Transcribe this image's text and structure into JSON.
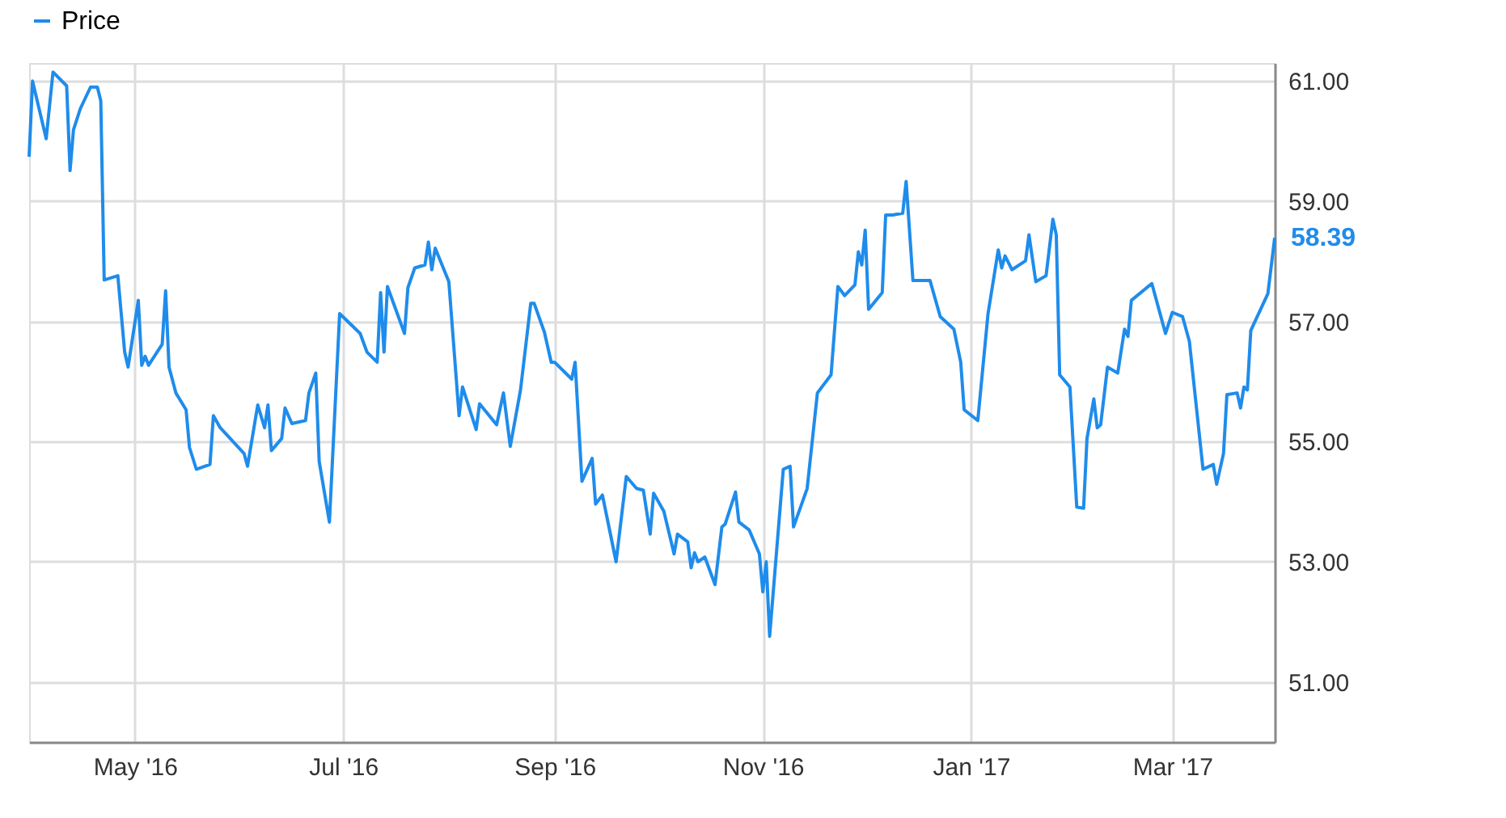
{
  "chart_data": {
    "type": "line",
    "x": [
      "2016-03-31",
      "2016-04-01",
      "2016-04-05",
      "2016-04-07",
      "2016-04-11",
      "2016-04-12",
      "2016-04-13",
      "2016-04-15",
      "2016-04-18",
      "2016-04-20",
      "2016-04-21",
      "2016-04-22",
      "2016-04-26",
      "2016-04-28",
      "2016-04-29",
      "2016-05-02",
      "2016-05-03",
      "2016-05-04",
      "2016-05-05",
      "2016-05-09",
      "2016-05-10",
      "2016-05-11",
      "2016-05-13",
      "2016-05-16",
      "2016-05-17",
      "2016-05-19",
      "2016-05-23",
      "2016-05-24",
      "2016-05-26",
      "2016-06-02",
      "2016-06-03",
      "2016-06-06",
      "2016-06-08",
      "2016-06-09",
      "2016-06-10",
      "2016-06-13",
      "2016-06-14",
      "2016-06-16",
      "2016-06-20",
      "2016-06-21",
      "2016-06-23",
      "2016-06-24",
      "2016-06-27",
      "2016-06-30",
      "2016-07-06",
      "2016-07-08",
      "2016-07-11",
      "2016-07-12",
      "2016-07-13",
      "2016-07-14",
      "2016-07-19",
      "2016-07-20",
      "2016-07-22",
      "2016-07-25",
      "2016-07-26",
      "2016-07-27",
      "2016-07-28",
      "2016-08-01",
      "2016-08-04",
      "2016-08-05",
      "2016-08-09",
      "2016-08-10",
      "2016-08-15",
      "2016-08-17",
      "2016-08-19",
      "2016-08-22",
      "2016-08-25",
      "2016-08-26",
      "2016-08-29",
      "2016-08-31",
      "2016-09-01",
      "2016-09-06",
      "2016-09-07",
      "2016-09-09",
      "2016-09-12",
      "2016-09-13",
      "2016-09-15",
      "2016-09-19",
      "2016-09-22",
      "2016-09-25",
      "2016-09-27",
      "2016-09-29",
      "2016-09-30",
      "2016-10-03",
      "2016-10-06",
      "2016-10-07",
      "2016-10-10",
      "2016-10-11",
      "2016-10-12",
      "2016-10-13",
      "2016-10-15",
      "2016-10-18",
      "2016-10-20",
      "2016-10-21",
      "2016-10-24",
      "2016-10-25",
      "2016-10-28",
      "2016-10-31",
      "2016-11-01",
      "2016-11-02",
      "2016-11-03",
      "2016-11-07",
      "2016-11-09",
      "2016-11-10",
      "2016-11-14",
      "2016-11-17",
      "2016-11-21",
      "2016-11-23",
      "2016-11-25",
      "2016-11-28",
      "2016-11-29",
      "2016-11-30",
      "2016-12-01",
      "2016-12-02",
      "2016-12-06",
      "2016-12-07",
      "2016-12-09",
      "2016-12-12",
      "2016-12-13",
      "2016-12-15",
      "2016-12-20",
      "2016-12-23",
      "2016-12-27",
      "2016-12-29",
      "2016-12-30",
      "2017-01-03",
      "2017-01-06",
      "2017-01-09",
      "2017-01-10",
      "2017-01-11",
      "2017-01-13",
      "2017-01-17",
      "2017-01-18",
      "2017-01-20",
      "2017-01-23",
      "2017-01-25",
      "2017-01-26",
      "2017-01-27",
      "2017-01-30",
      "2017-02-01",
      "2017-02-03",
      "2017-02-04",
      "2017-02-06",
      "2017-02-07",
      "2017-02-08",
      "2017-02-10",
      "2017-02-13",
      "2017-02-15",
      "2017-02-16",
      "2017-02-17",
      "2017-02-23",
      "2017-02-27",
      "2017-03-01",
      "2017-03-04",
      "2017-03-06",
      "2017-03-10",
      "2017-03-13",
      "2017-03-14",
      "2017-03-16",
      "2017-03-17",
      "2017-03-20",
      "2017-03-21",
      "2017-03-22",
      "2017-03-23",
      "2017-03-24",
      "2017-03-29",
      "2017-03-31"
    ],
    "series": [
      {
        "name": "Price",
        "color": "#1f8ceb",
        "values": [
          59.74,
          61.0,
          60.04,
          61.15,
          60.92,
          59.51,
          60.19,
          60.54,
          60.9,
          60.9,
          60.67,
          57.69,
          57.76,
          56.49,
          56.24,
          57.35,
          56.27,
          56.42,
          56.27,
          56.62,
          57.51,
          56.24,
          55.81,
          55.53,
          54.9,
          54.54,
          54.62,
          55.43,
          55.23,
          54.8,
          54.59,
          55.61,
          55.23,
          55.61,
          54.85,
          55.05,
          55.56,
          55.3,
          55.35,
          55.81,
          56.14,
          54.67,
          53.66,
          57.13,
          56.8,
          56.49,
          56.32,
          57.48,
          56.49,
          57.58,
          56.8,
          57.56,
          57.89,
          57.94,
          58.32,
          57.86,
          58.22,
          57.66,
          55.43,
          55.91,
          55.2,
          55.63,
          55.28,
          55.81,
          54.92,
          55.86,
          57.3,
          57.3,
          56.82,
          56.32,
          56.32,
          56.04,
          56.32,
          54.34,
          54.72,
          53.96,
          54.11,
          53.0,
          54.42,
          54.22,
          54.19,
          53.46,
          54.14,
          53.84,
          53.13,
          53.46,
          53.33,
          52.9,
          53.15,
          53.0,
          53.08,
          52.62,
          53.58,
          53.63,
          54.16,
          53.66,
          53.53,
          53.13,
          52.5,
          53.0,
          51.76,
          54.54,
          54.59,
          53.58,
          54.22,
          55.81,
          56.11,
          57.58,
          57.43,
          57.61,
          58.16,
          57.94,
          58.52,
          57.2,
          57.48,
          58.77,
          58.77,
          58.8,
          59.33,
          57.68,
          57.68,
          57.08,
          56.87,
          56.32,
          55.53,
          55.35,
          57.13,
          58.19,
          57.89,
          58.09,
          57.86,
          58.01,
          58.44,
          57.66,
          57.76,
          58.7,
          58.44,
          56.11,
          55.91,
          53.91,
          53.89,
          55.05,
          55.71,
          55.23,
          55.28,
          56.24,
          56.14,
          56.87,
          56.75,
          57.35,
          57.63,
          56.8,
          57.15,
          57.08,
          56.67,
          54.54,
          54.62,
          54.29,
          54.8,
          55.78,
          55.81,
          55.56,
          55.91,
          55.86,
          56.85,
          57.46,
          58.39
        ]
      }
    ],
    "xlim": [
      "2016-03-31",
      "2017-03-31"
    ],
    "xticks": [
      {
        "value": "2016-05-01",
        "label": "May '16"
      },
      {
        "value": "2016-07-01",
        "label": "Jul '16"
      },
      {
        "value": "2016-09-01",
        "label": "Sep '16"
      },
      {
        "value": "2016-11-01",
        "label": "Nov '16"
      },
      {
        "value": "2017-01-01",
        "label": "Jan '17"
      },
      {
        "value": "2017-03-01",
        "label": "Mar '17"
      }
    ],
    "ylim": [
      50,
      61.3
    ],
    "yticks": [
      {
        "value": 51,
        "label": "51.00"
      },
      {
        "value": 53,
        "label": "53.00"
      },
      {
        "value": 55,
        "label": "55.00"
      },
      {
        "value": 57,
        "label": "57.00"
      },
      {
        "value": 59,
        "label": "59.00"
      },
      {
        "value": 61,
        "label": "61.00"
      }
    ],
    "annotations": [
      {
        "text": "58.39",
        "x": "2017-03-31",
        "y": 58.39
      }
    ],
    "grid": true,
    "legend": "top left",
    "marker": "none",
    "line_style": "solid"
  }
}
